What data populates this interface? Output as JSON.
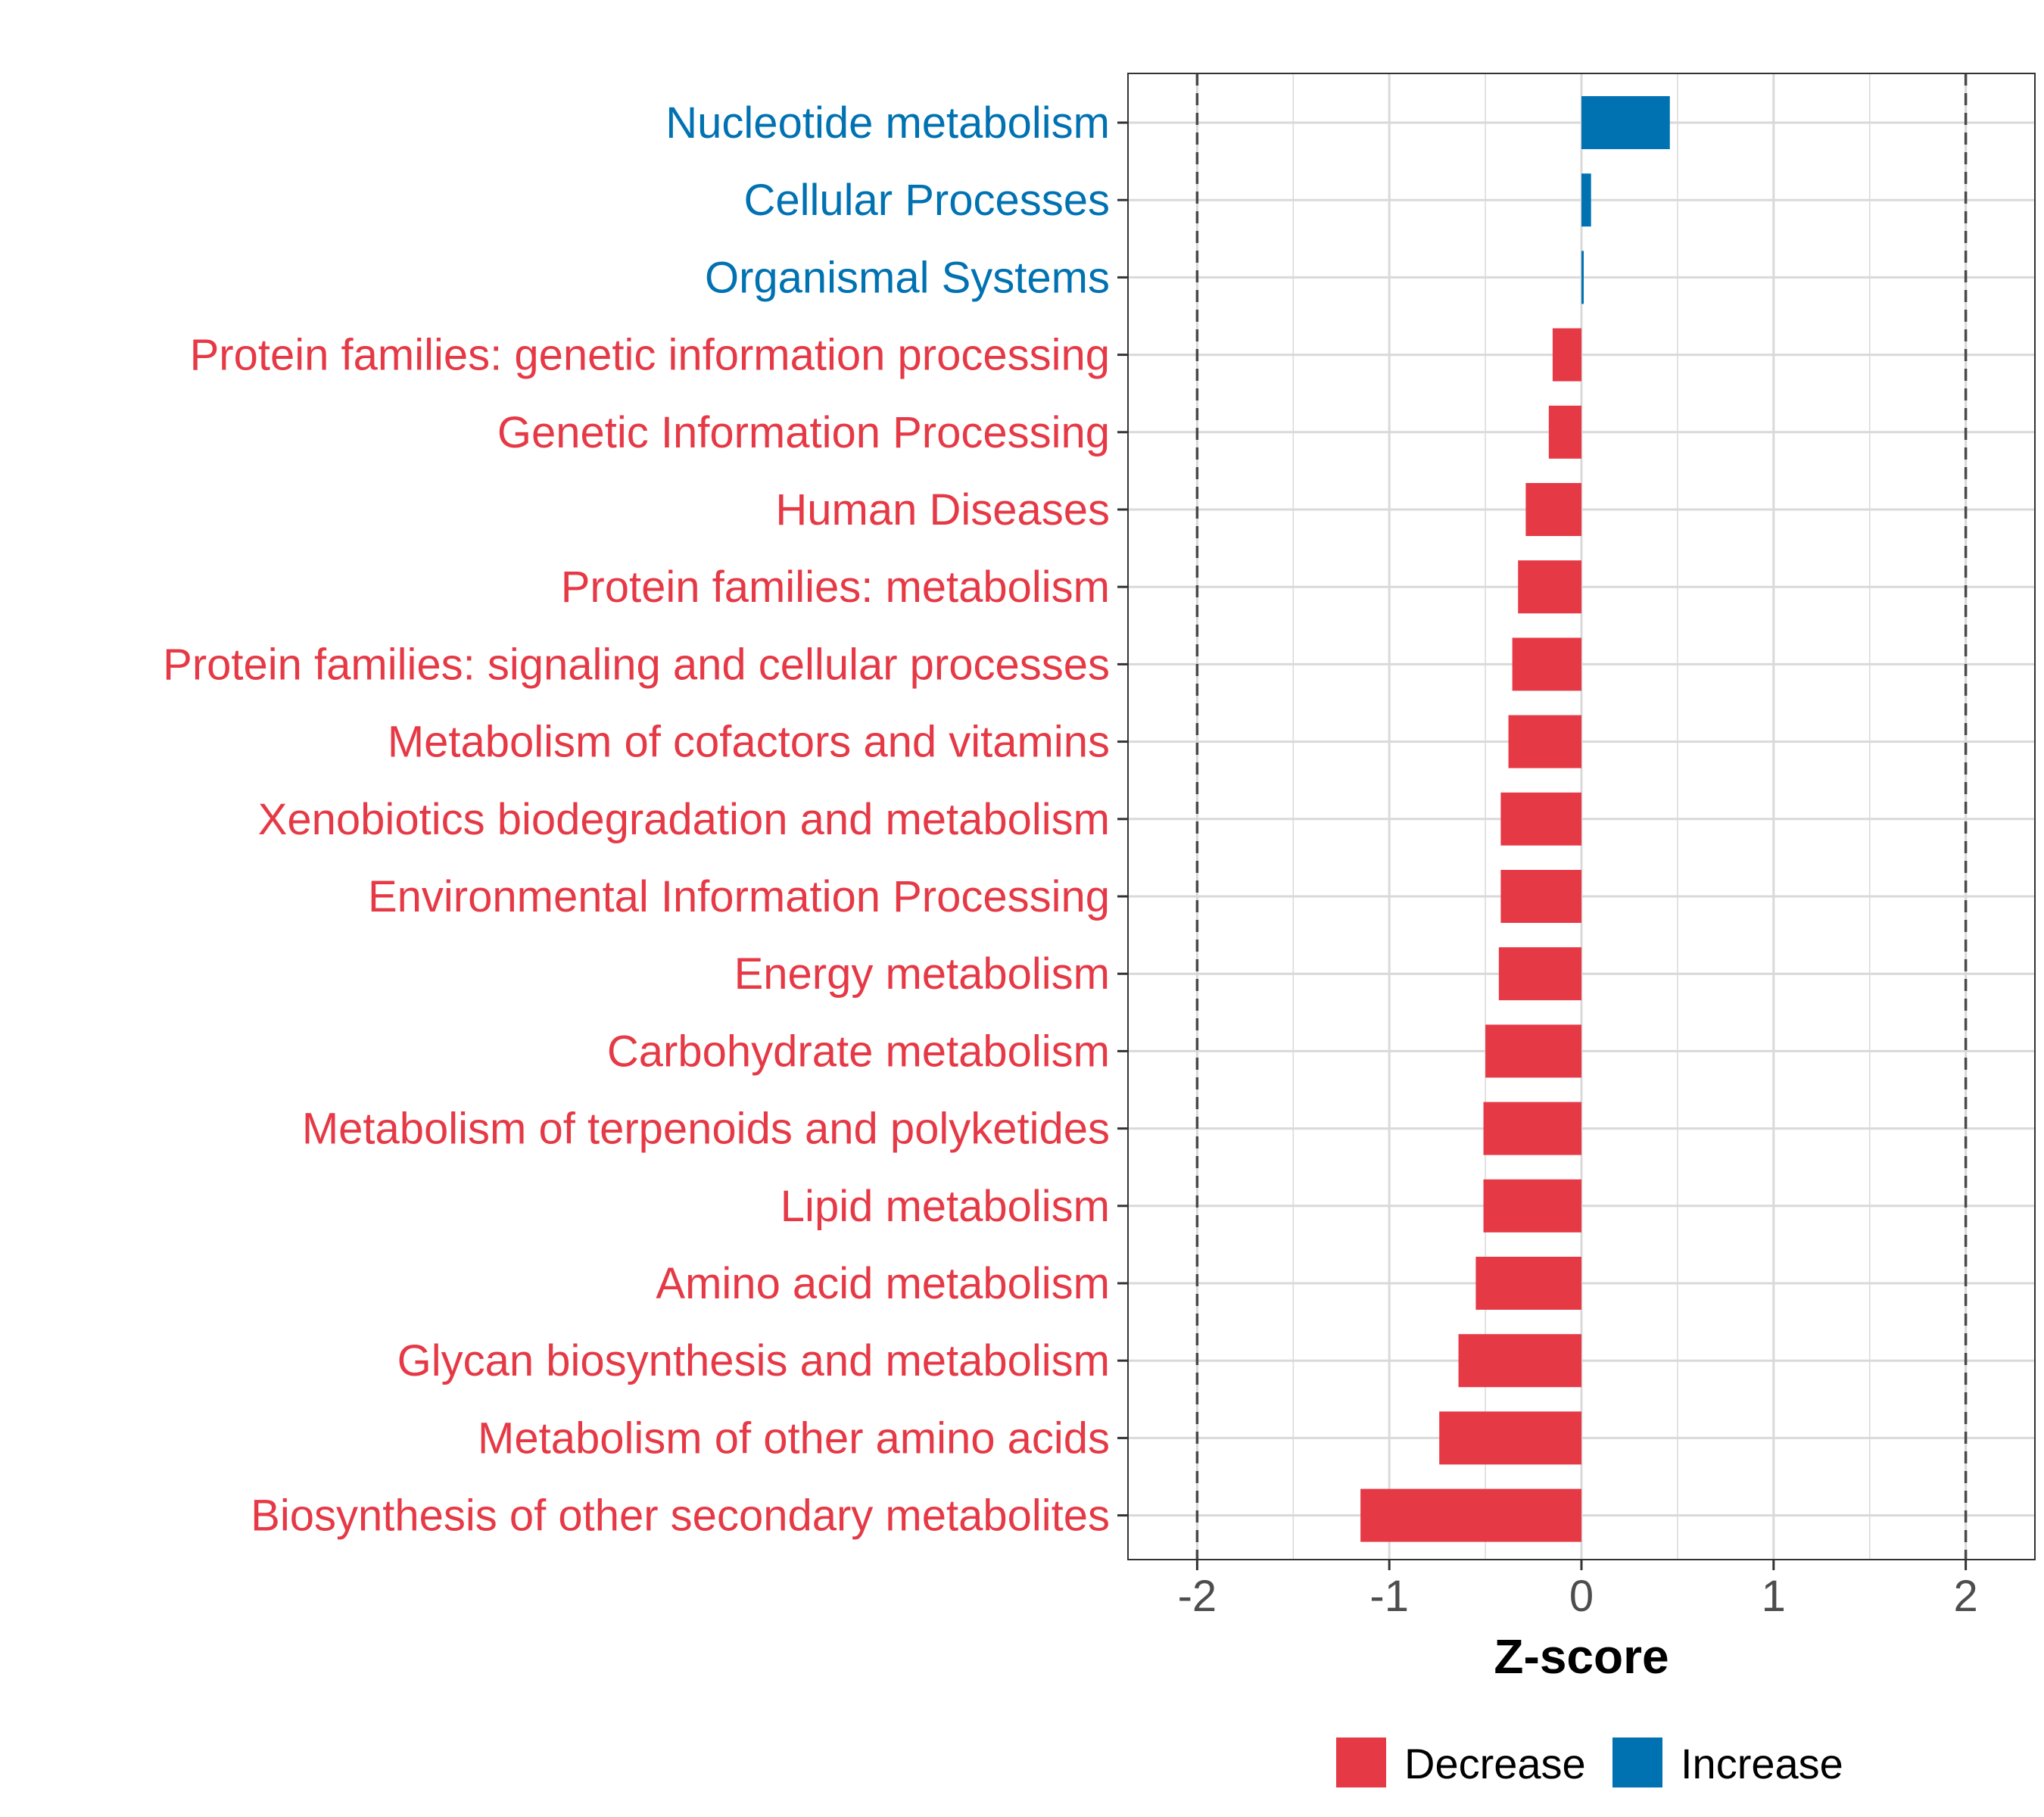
{
  "chart_data": {
    "type": "bar",
    "orientation": "horizontal",
    "title": "",
    "xlabel": "Z-score",
    "ylabel": "",
    "xlim": [
      -2.36,
      2.36
    ],
    "x_ticks": [
      -2,
      -1,
      0,
      1,
      2
    ],
    "x_tick_labels": [
      "-2",
      "-1",
      "0",
      "1",
      "2"
    ],
    "reference_lines": [
      -2,
      2
    ],
    "grid": true,
    "legend_position": "bottom",
    "categories": [
      "Nucleotide metabolism",
      "Cellular Processes",
      "Organismal Systems",
      "Protein families: genetic information processing",
      "Genetic Information Processing",
      "Human Diseases",
      "Protein families: metabolism",
      "Protein families: signaling and cellular processes",
      "Metabolism of cofactors and vitamins",
      "Xenobiotics biodegradation and metabolism",
      "Environmental Information Processing",
      "Energy metabolism",
      "Carbohydrate metabolism",
      "Metabolism of terpenoids and polyketides",
      "Lipid metabolism",
      "Amino acid metabolism",
      "Glycan biosynthesis and metabolism",
      "Metabolism of other amino acids",
      "Biosynthesis of other secondary metabolites"
    ],
    "values": [
      0.46,
      0.05,
      0.01,
      -0.15,
      -0.17,
      -0.29,
      -0.33,
      -0.36,
      -0.38,
      -0.42,
      -0.42,
      -0.43,
      -0.5,
      -0.51,
      -0.51,
      -0.55,
      -0.64,
      -0.74,
      -1.15
    ],
    "groups": [
      "Increase",
      "Increase",
      "Increase",
      "Decrease",
      "Decrease",
      "Decrease",
      "Decrease",
      "Decrease",
      "Decrease",
      "Decrease",
      "Decrease",
      "Decrease",
      "Decrease",
      "Decrease",
      "Decrease",
      "Decrease",
      "Decrease",
      "Decrease",
      "Decrease"
    ],
    "legend": [
      {
        "label": "Decrease",
        "color": "#E63946"
      },
      {
        "label": "Increase",
        "color": "#0072B2"
      }
    ]
  }
}
